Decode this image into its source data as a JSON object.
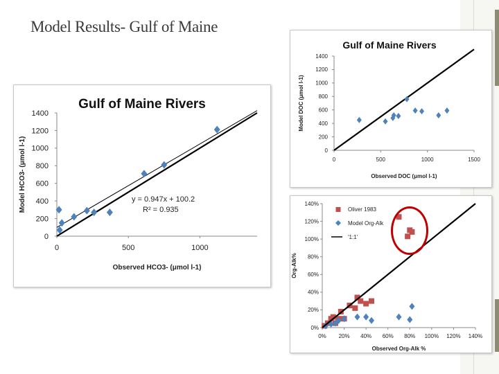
{
  "slide": {
    "title": "Model Results- Gulf of Maine"
  },
  "colors": {
    "blue_marker": "#4f81bd",
    "red_marker": "#c0504d",
    "highlight_oval": "#c00000",
    "line": "#000000"
  },
  "chart_data": [
    {
      "type": "scatter",
      "title": "Gulf of Maine Rivers",
      "xlabel": "Observed HCO3- (μmol l-1)",
      "ylabel": "Model HCO3- (μmol l-1)",
      "xlim": [
        0,
        1400
      ],
      "ylim": [
        0,
        1400
      ],
      "xticks": [
        "0",
        "500",
        "1000"
      ],
      "yticks": [
        "0",
        "200",
        "400",
        "600",
        "800",
        "1000",
        "1200",
        "1400"
      ],
      "annotation": {
        "equation": "y = 0.947x + 100.2",
        "r2": "R² = 0.935"
      },
      "grid": false,
      "series": [
        {
          "marker": "diamond",
          "color": "#4f81bd",
          "x": [
            15,
            20,
            35,
            120,
            210,
            260,
            370,
            610,
            750,
            1120
          ],
          "y": [
            300,
            70,
            150,
            220,
            290,
            270,
            270,
            710,
            810,
            1210
          ]
        }
      ],
      "lines": [
        {
          "style": "thin",
          "x": [
            0,
            1400
          ],
          "y": [
            100.2,
            1426
          ]
        },
        {
          "style": "thick",
          "x": [
            0,
            1400
          ],
          "y": [
            0,
            1400
          ]
        }
      ]
    },
    {
      "type": "scatter",
      "title": "Gulf of Maine Rivers",
      "xlabel": "Observed DOC (μmol l-1)",
      "ylabel": "Model DOC (μmol l-1)",
      "xlim": [
        0,
        1500
      ],
      "ylim": [
        0,
        1400
      ],
      "xticks": [
        "0",
        "500",
        "1000",
        "1500"
      ],
      "yticks": [
        "0",
        "200",
        "400",
        "600",
        "800",
        "1000",
        "1200",
        "1400"
      ],
      "grid": false,
      "series": [
        {
          "marker": "diamond",
          "color": "#4f81bd",
          "x": [
            270,
            550,
            630,
            640,
            690,
            780,
            870,
            940,
            1120,
            1210
          ],
          "y": [
            450,
            430,
            480,
            520,
            510,
            760,
            590,
            580,
            520,
            590
          ]
        }
      ],
      "lines": [
        {
          "style": "thick",
          "x": [
            0,
            1500
          ],
          "y": [
            0,
            1500
          ]
        }
      ]
    },
    {
      "type": "scatter",
      "title": "",
      "xlabel": "Observed Org-Alk %",
      "ylabel": "Org-Alk%",
      "xlim": [
        0,
        140
      ],
      "ylim": [
        0,
        140
      ],
      "xticks": [
        "0%",
        "20%",
        "40%",
        "60%",
        "80%",
        "100%",
        "120%",
        "140%"
      ],
      "yticks": [
        "0%",
        "20%",
        "40%",
        "60%",
        "80%",
        "100%",
        "120%",
        "140%"
      ],
      "grid": false,
      "legend": "top-left",
      "series": [
        {
          "name": "Oliver 1983",
          "marker": "square",
          "color": "#c0504d",
          "x": [
            2,
            5,
            8,
            10,
            12,
            15,
            17,
            20,
            25,
            30,
            32,
            35,
            40,
            45,
            70,
            78,
            80,
            82
          ],
          "y": [
            2,
            5,
            10,
            12,
            5,
            10,
            18,
            10,
            25,
            22,
            34,
            30,
            27,
            30,
            125,
            103,
            110,
            108
          ]
        },
        {
          "name": "Model Org-Alk",
          "marker": "diamond",
          "color": "#4f81bd",
          "x": [
            3,
            8,
            12,
            15,
            20,
            32,
            40,
            45,
            70,
            80,
            82
          ],
          "y": [
            2,
            4,
            5,
            8,
            10,
            12,
            12,
            8,
            12,
            9,
            24
          ]
        },
        {
          "name": "'1:1'",
          "marker": "line",
          "color": "#000000",
          "x": [
            0,
            140
          ],
          "y": [
            0,
            140
          ]
        }
      ]
    }
  ]
}
